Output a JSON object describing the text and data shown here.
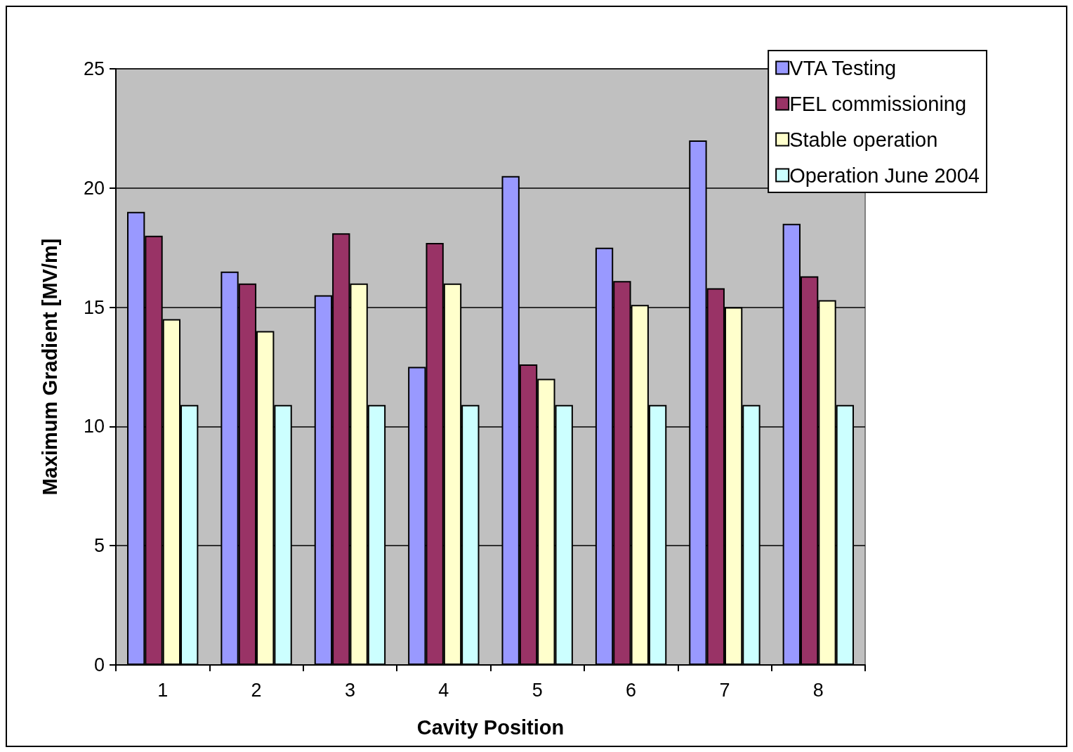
{
  "chart_data": {
    "type": "bar",
    "xlabel": "Cavity Position",
    "ylabel": "Maximum Gradient [MV/m]",
    "categories": [
      "1",
      "2",
      "3",
      "4",
      "5",
      "6",
      "7",
      "8"
    ],
    "series": [
      {
        "name": "VTA Testing",
        "color": "#9999ff",
        "values": [
          19,
          16.5,
          15.5,
          12.5,
          20.5,
          17.5,
          22,
          18.5
        ]
      },
      {
        "name": "FEL commissioning",
        "color": "#993366",
        "values": [
          18,
          16,
          18.1,
          17.7,
          12.6,
          16.1,
          15.8,
          16.3
        ]
      },
      {
        "name": "Stable operation",
        "color": "#ffffcc",
        "values": [
          14.5,
          14,
          16,
          16,
          12,
          15.1,
          15,
          15.3
        ]
      },
      {
        "name": "Operation June 2004",
        "color": "#ccffff",
        "values": [
          10.9,
          10.9,
          10.9,
          10.9,
          10.9,
          10.9,
          10.9,
          10.9
        ]
      }
    ],
    "ylim": [
      0,
      25
    ],
    "yticks": [
      0,
      5,
      10,
      15,
      20,
      25
    ],
    "grid": "y",
    "legend": "top right"
  }
}
